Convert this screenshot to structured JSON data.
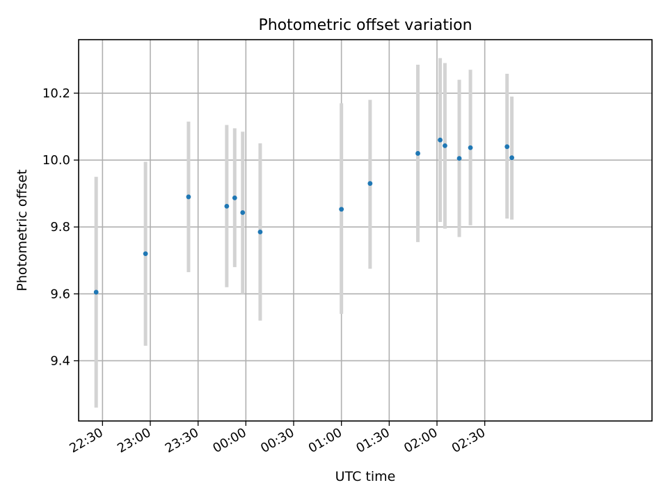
{
  "chart_data": {
    "type": "scatter",
    "title": "Photometric offset variation",
    "xlabel": "UTC time",
    "ylabel": "Photometric offset",
    "x_unit": "UTC time (HH:MM, night crossing midnight)",
    "xlim": [
      "22:15",
      "04:15"
    ],
    "ylim": [
      9.22,
      10.36
    ],
    "x_ticks": [
      "22:30",
      "23:00",
      "23:30",
      "00:00",
      "00:30",
      "01:00",
      "01:30",
      "02:00",
      "02:30"
    ],
    "y_ticks": [
      9.4,
      9.6,
      9.8,
      10.0,
      10.2
    ],
    "grid": true,
    "point_color": "#1f77b4",
    "errorbar_color": "#d3d3d3",
    "series": [
      {
        "points": [
          {
            "x": "22:26",
            "y": 9.605,
            "lo": 9.26,
            "hi": 9.95
          },
          {
            "x": "22:57",
            "y": 9.72,
            "lo": 9.445,
            "hi": 9.995
          },
          {
            "x": "23:24",
            "y": 9.89,
            "lo": 9.665,
            "hi": 10.115
          },
          {
            "x": "23:48",
            "y": 9.862,
            "lo": 9.62,
            "hi": 10.105
          },
          {
            "x": "23:53",
            "y": 9.887,
            "lo": 9.68,
            "hi": 10.095
          },
          {
            "x": "23:58",
            "y": 9.843,
            "lo": 9.6,
            "hi": 10.085
          },
          {
            "x": "00:09",
            "y": 9.785,
            "lo": 9.52,
            "hi": 10.05
          },
          {
            "x": "01:00",
            "y": 9.853,
            "lo": 9.54,
            "hi": 10.17
          },
          {
            "x": "01:18",
            "y": 9.93,
            "lo": 9.675,
            "hi": 10.18
          },
          {
            "x": "01:48",
            "y": 10.02,
            "lo": 9.755,
            "hi": 10.285
          },
          {
            "x": "02:02",
            "y": 10.06,
            "lo": 9.815,
            "hi": 10.305
          },
          {
            "x": "02:05",
            "y": 10.043,
            "lo": 9.795,
            "hi": 10.29
          },
          {
            "x": "02:14",
            "y": 10.005,
            "lo": 9.77,
            "hi": 10.24
          },
          {
            "x": "02:21",
            "y": 10.037,
            "lo": 9.805,
            "hi": 10.27
          },
          {
            "x": "02:44",
            "y": 10.04,
            "lo": 9.825,
            "hi": 10.258
          },
          {
            "x": "02:47",
            "y": 10.007,
            "lo": 9.822,
            "hi": 10.19
          }
        ]
      }
    ]
  }
}
